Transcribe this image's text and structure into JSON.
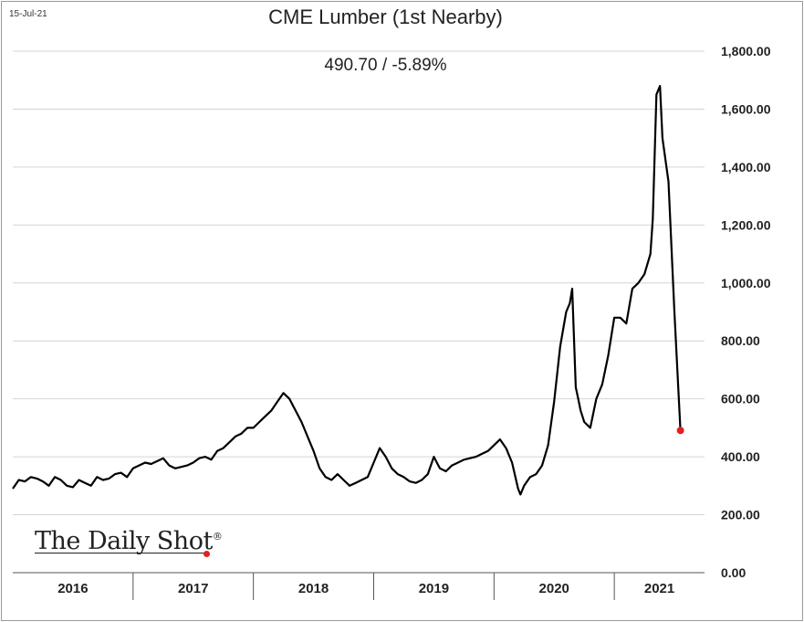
{
  "chart_data": {
    "type": "line",
    "date_stamp": "15-Jul-21",
    "title": "CME Lumber (1st Nearby)",
    "subtitle": "490.70  /  -5.89%",
    "watermark": "The Daily Shot",
    "watermark_mark": "®",
    "ylim": [
      0,
      1800
    ],
    "yticks": [
      {
        "value": 0,
        "label": "0.00"
      },
      {
        "value": 200,
        "label": "200.00"
      },
      {
        "value": 400,
        "label": "400.00"
      },
      {
        "value": 600,
        "label": "600.00"
      },
      {
        "value": 800,
        "label": "800.00"
      },
      {
        "value": 1000,
        "label": "1,000.00"
      },
      {
        "value": 1200,
        "label": "1,200.00"
      },
      {
        "value": 1400,
        "label": "1,400.00"
      },
      {
        "value": 1600,
        "label": "1,600.00"
      },
      {
        "value": 1800,
        "label": "1,800.00"
      }
    ],
    "xlim": [
      2016.0,
      2021.75
    ],
    "years": [
      "2016",
      "2017",
      "2018",
      "2019",
      "2020",
      "2021"
    ],
    "grid": true,
    "line_color": "#000000",
    "last_point_color": "#e32020",
    "series": [
      {
        "x": [
          2016.0,
          2016.05,
          2016.1,
          2016.15,
          2016.2,
          2016.25,
          2016.3,
          2016.35,
          2016.4,
          2016.45,
          2016.5,
          2016.55,
          2016.6,
          2016.65,
          2016.7,
          2016.75,
          2016.8,
          2016.85,
          2016.9,
          2016.95,
          2017.0,
          2017.05,
          2017.1,
          2017.15,
          2017.2,
          2017.25,
          2017.3,
          2017.35,
          2017.4,
          2017.45,
          2017.5,
          2017.55,
          2017.6,
          2017.65,
          2017.7,
          2017.75,
          2017.8,
          2017.85,
          2017.9,
          2017.95,
          2018.0,
          2018.05,
          2018.1,
          2018.15,
          2018.2,
          2018.25,
          2018.3,
          2018.35,
          2018.4,
          2018.45,
          2018.5,
          2018.55,
          2018.6,
          2018.65,
          2018.7,
          2018.75,
          2018.8,
          2018.85,
          2018.9,
          2018.95,
          2019.0,
          2019.05,
          2019.1,
          2019.15,
          2019.2,
          2019.25,
          2019.3,
          2019.35,
          2019.4,
          2019.45,
          2019.5,
          2019.55,
          2019.6,
          2019.65,
          2019.7,
          2019.75,
          2019.8,
          2019.85,
          2019.9,
          2019.95,
          2020.0,
          2020.05,
          2020.1,
          2020.15,
          2020.2,
          2020.22,
          2020.25,
          2020.3,
          2020.35,
          2020.4,
          2020.45,
          2020.5,
          2020.55,
          2020.6,
          2020.63,
          2020.65,
          2020.68,
          2020.7,
          2020.72,
          2020.75,
          2020.8,
          2020.85,
          2020.9,
          2020.95,
          2021.0,
          2021.05,
          2021.1,
          2021.15,
          2021.2,
          2021.25,
          2021.3,
          2021.32,
          2021.35,
          2021.38,
          2021.4,
          2021.45,
          2021.5,
          2021.55
        ],
        "y": [
          290,
          320,
          315,
          330,
          325,
          315,
          300,
          330,
          320,
          300,
          295,
          320,
          310,
          300,
          330,
          320,
          325,
          340,
          345,
          330,
          360,
          370,
          380,
          375,
          385,
          395,
          370,
          360,
          365,
          370,
          380,
          395,
          400,
          390,
          420,
          430,
          450,
          470,
          480,
          500,
          500,
          520,
          540,
          560,
          590,
          620,
          600,
          560,
          520,
          470,
          420,
          360,
          330,
          320,
          340,
          320,
          300,
          310,
          320,
          330,
          380,
          430,
          400,
          360,
          340,
          330,
          315,
          310,
          320,
          340,
          400,
          360,
          350,
          370,
          380,
          390,
          395,
          400,
          410,
          420,
          440,
          460,
          430,
          380,
          290,
          270,
          300,
          330,
          340,
          370,
          440,
          590,
          780,
          900,
          930,
          980,
          640,
          600,
          560,
          520,
          500,
          600,
          650,
          750,
          880,
          880,
          860,
          980,
          1000,
          1030,
          1100,
          1220,
          1650,
          1680,
          1500,
          1350,
          900,
          490.7
        ]
      }
    ]
  }
}
